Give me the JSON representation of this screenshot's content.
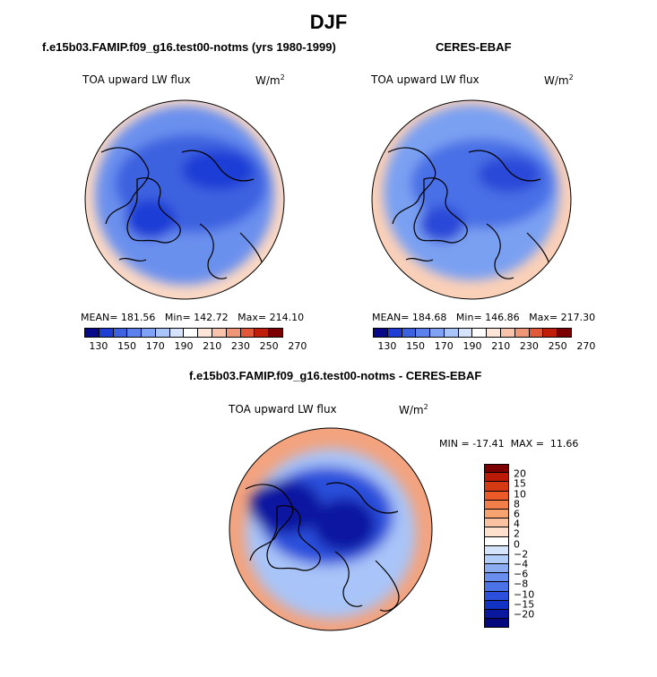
{
  "title": "DJF",
  "panels": [
    {
      "title": "f.e15b03.FAMIP.f09_g16.test00-notms (yrs 1980-1999)",
      "variable": "TOA upward LW flux",
      "units_base": "W/m",
      "units_exp": "2",
      "stats": {
        "mean_label": "MEAN=",
        "mean": "181.56",
        "min_label": "Min=",
        "min": "142.72",
        "max_label": "Max=",
        "max": "214.10"
      }
    },
    {
      "title": "CERES-EBAF",
      "variable": "TOA upward LW flux",
      "units_base": "W/m",
      "units_exp": "2",
      "stats": {
        "mean_label": "MEAN=",
        "mean": "184.68",
        "min_label": "Min=",
        "min": "146.86",
        "max_label": "Max=",
        "max": "217.30"
      }
    },
    {
      "title": "f.e15b03.FAMIP.f09_g16.test00-notms - CERES-EBAF",
      "variable": "TOA upward LW flux",
      "units_base": "W/m",
      "units_exp": "2",
      "stats": {
        "min_label": "MIN =",
        "min": "-17.41",
        "max_label": "MAX =",
        "max": "11.66"
      }
    }
  ],
  "colorbar_abs": {
    "colors": [
      "#08088a",
      "#1f3ed6",
      "#3c62e0",
      "#5b82ec",
      "#7fa2f4",
      "#a9c4f8",
      "#d6e4fb",
      "#ffffff",
      "#fde6d8",
      "#f8c3aa",
      "#ee9676",
      "#e05a3a",
      "#c01e0a",
      "#7d0000"
    ],
    "ticks": [
      "130",
      "150",
      "170",
      "190",
      "210",
      "230",
      "250",
      "270"
    ]
  },
  "colorbar_diff": {
    "colors": [
      "#7d0000",
      "#bb1a06",
      "#d63a12",
      "#ec5a28",
      "#f47e4a",
      "#f8a270",
      "#fbc2a2",
      "#fde0ce",
      "#ffffff",
      "#d6e4fb",
      "#b2ccf8",
      "#8cacf2",
      "#6a8eee",
      "#4b72e6",
      "#2c50dc",
      "#1232c4",
      "#0a18a0",
      "#04087a"
    ],
    "ticks": [
      "20",
      "15",
      "10",
      "8",
      "6",
      "4",
      "2",
      "0",
      "−2",
      "−4",
      "−6",
      "−8",
      "−10",
      "−15",
      "−20"
    ]
  },
  "maps": [
    {
      "kind": "absolute",
      "base_color": "#6a90ee",
      "outer_color": "#fbd8c4",
      "inner_color": "#3c62e0",
      "deep_color": "#1f3ed6"
    },
    {
      "kind": "absolute",
      "base_color": "#7aa0f2",
      "outer_color": "#fbd0b8",
      "inner_color": "#4a70e6",
      "deep_color": "#2a48d8"
    },
    {
      "kind": "difference",
      "base_color": "#a9c4f8",
      "outer_color": "#f3a37e",
      "inner_color": "#2c50dc",
      "deep_color": "#0a18a0"
    }
  ]
}
